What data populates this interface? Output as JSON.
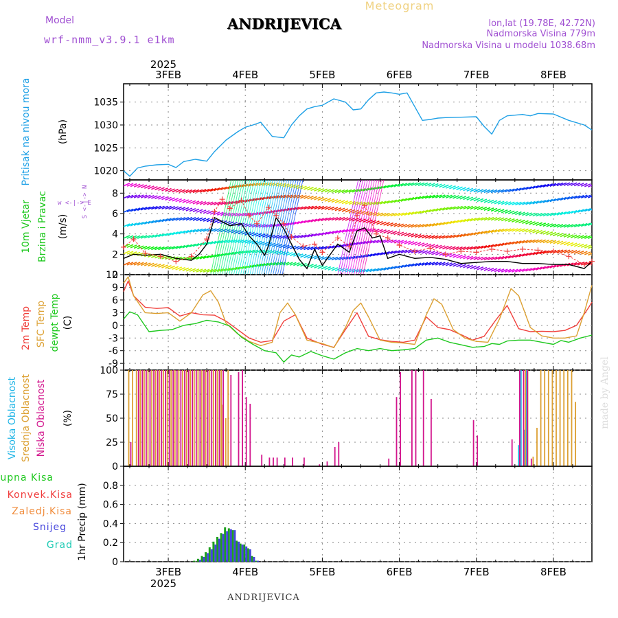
{
  "header": {
    "model_label": "Model",
    "model_name": "wrf-nmm_v3.9.1 e1km",
    "station": "ANDRIJEVICA",
    "product": "Meteogram",
    "coords": "lon,lat (19.78E, 42.72N)",
    "elevation": "Nadmorska Visina 779m",
    "model_elevation": "Nadmorska Visina u modelu 1038.68m"
  },
  "footer": {
    "station": "ANDRIJEVICA",
    "credit": "made by Angel"
  },
  "time_axis": {
    "year": "2025",
    "day_labels": [
      "3FEB",
      "4FEB",
      "5FEB",
      "6FEB",
      "7FEB",
      "8FEB"
    ],
    "day_positions": [
      1,
      2,
      3,
      4,
      5,
      6
    ],
    "x_range": [
      0.42,
      6.5
    ]
  },
  "colors": {
    "pressure": "#1ea0e6",
    "wind_speed": "#000000",
    "temp_2m": "#f0403c",
    "temp_sfc": "#dca032",
    "dewpoint": "#1ec81e",
    "cloud_high": "#1eb4e6",
    "cloud_mid": "#dca032",
    "cloud_low": "#d2148c",
    "precip_total": "#1ea01e",
    "precip_snow": "#4646dc",
    "grid": "#888888"
  },
  "legend_labels": {
    "pressure_name": "Pritisak na nivou mora",
    "pressure_unit": "(hPa)",
    "wind_name_1": "10m Vjetar",
    "wind_name_2": "Brzina i Pravac",
    "wind_unit": "(m/s)",
    "wind_compass": "w <-|-> E",
    "wind_compass_ns": "S <-|-> N",
    "temp_2m": "2m Temp",
    "temp_sfc": "SFC Temp",
    "temp_dew": "dewpt Temp",
    "temp_unit": "(C)",
    "cloud_high": "Visoka Oblacnost",
    "cloud_mid": "Srednja Oblacnost",
    "cloud_low": "Niska Oblacnost",
    "cloud_unit": "(%)",
    "precip_total": "Ukupna Kisa",
    "precip_conv": "Konvek.Kisa",
    "precip_frz": "Zaledj.Kisa",
    "precip_snow": "Snijeg",
    "precip_grad": "Grad",
    "precip_unit": "1hr Precip (mm)"
  },
  "chart_data": [
    {
      "type": "line",
      "name": "pressure",
      "ylim": [
        1018,
        1039
      ],
      "yticks": [
        1020,
        1025,
        1030,
        1035
      ],
      "series": [
        {
          "name": "Pritisak na nivou mora",
          "color": "#1ea0e6",
          "x": [
            0.42,
            0.5,
            0.6,
            0.7,
            0.85,
            1.0,
            1.1,
            1.2,
            1.35,
            1.5,
            1.6,
            1.75,
            1.9,
            2.0,
            2.1,
            2.2,
            2.35,
            2.5,
            2.6,
            2.7,
            2.8,
            2.9,
            3.0,
            3.15,
            3.3,
            3.4,
            3.5,
            3.6,
            3.7,
            3.8,
            3.9,
            4.0,
            4.1,
            4.2,
            4.3,
            4.4,
            4.5,
            4.6,
            4.8,
            5.0,
            5.1,
            5.2,
            5.3,
            5.4,
            5.6,
            5.7,
            5.8,
            6.0,
            6.2,
            6.4,
            6.5
          ],
          "y": [
            1020.0,
            1018.8,
            1020.6,
            1021.0,
            1021.3,
            1021.4,
            1020.7,
            1022.0,
            1022.5,
            1022.1,
            1024.2,
            1026.7,
            1028.5,
            1029.5,
            1030.0,
            1030.6,
            1027.5,
            1027.2,
            1030.0,
            1032.0,
            1033.5,
            1034.0,
            1034.3,
            1035.7,
            1035.0,
            1033.3,
            1033.5,
            1035.5,
            1037.0,
            1037.2,
            1037.0,
            1036.7,
            1037.0,
            1034.0,
            1031.0,
            1031.2,
            1031.5,
            1031.6,
            1031.7,
            1031.8,
            1029.7,
            1028.0,
            1031.0,
            1032.0,
            1032.3,
            1032.0,
            1032.5,
            1032.4,
            1031.0,
            1030.0,
            1028.9
          ]
        }
      ]
    },
    {
      "type": "line",
      "name": "wind",
      "ylim": [
        0,
        9.3
      ],
      "yticks": [
        0,
        2,
        4,
        6,
        8
      ],
      "series": [
        {
          "name": "wind speed",
          "color": "#000000",
          "x": [
            0.42,
            0.55,
            0.7,
            0.9,
            1.1,
            1.3,
            1.4,
            1.5,
            1.6,
            1.8,
            1.95,
            2.05,
            2.15,
            2.25,
            2.3,
            2.4,
            2.5,
            2.6,
            2.7,
            2.8,
            2.9,
            3.0,
            3.2,
            3.35,
            3.45,
            3.55,
            3.65,
            3.75,
            3.85,
            4.0,
            4.2,
            4.4,
            4.6,
            4.8,
            5.0,
            5.2,
            5.4,
            5.6,
            5.8,
            6.0,
            6.2,
            6.4,
            6.5
          ],
          "y": [
            1.6,
            2.0,
            1.9,
            2.0,
            1.6,
            1.4,
            2.0,
            3.0,
            5.6,
            4.8,
            5.0,
            3.8,
            3.0,
            1.9,
            2.8,
            5.6,
            4.5,
            3.0,
            1.5,
            0.6,
            2.5,
            0.9,
            3.0,
            2.2,
            4.3,
            4.6,
            3.6,
            3.8,
            1.6,
            2.0,
            1.6,
            1.7,
            1.5,
            1.1,
            1.2,
            1.3,
            1.3,
            1.1,
            1.1,
            1.0,
            1.0,
            0.6,
            1.3
          ]
        },
        {
          "name": "gust",
          "color": "#f03c3c",
          "x": [
            0.42,
            0.55,
            0.7,
            0.9,
            1.1,
            1.3,
            1.5,
            1.6,
            1.7,
            1.8,
            1.95,
            2.05,
            2.15,
            2.3,
            2.4,
            2.5,
            2.6,
            2.75,
            2.9,
            3.0,
            3.2,
            3.35,
            3.45,
            3.55,
            3.7,
            3.85,
            4.0,
            4.2,
            4.4,
            4.6,
            4.8,
            5.0,
            5.2,
            5.4,
            5.6,
            5.8,
            6.0,
            6.2,
            6.4,
            6.5
          ],
          "y": [
            2.7,
            3.5,
            2.1,
            1.8,
            1.3,
            1.8,
            3.5,
            6.2,
            7.4,
            6.5,
            7.3,
            5.8,
            5.0,
            6.6,
            5.8,
            5.0,
            3.7,
            2.8,
            3.0,
            2.2,
            3.6,
            2.8,
            5.8,
            6.8,
            4.0,
            3.6,
            2.9,
            2.3,
            2.6,
            2.0,
            2.3,
            2.2,
            2.5,
            2.3,
            2.5,
            2.4,
            2.3,
            1.8,
            1.0,
            1.3
          ]
        }
      ]
    },
    {
      "type": "line",
      "name": "temperature",
      "ylim": [
        -10.6,
        12
      ],
      "yticks": [
        -9,
        -6,
        -3,
        0,
        3,
        6,
        9,
        12
      ],
      "series": [
        {
          "name": "2m Temp",
          "color": "#f0403c",
          "x": [
            0.42,
            0.48,
            0.55,
            0.7,
            0.85,
            1.0,
            1.15,
            1.3,
            1.45,
            1.6,
            1.75,
            1.9,
            2.05,
            2.2,
            2.35,
            2.5,
            2.65,
            2.8,
            3.0,
            3.15,
            3.3,
            3.45,
            3.6,
            3.75,
            3.9,
            4.05,
            4.2,
            4.35,
            4.5,
            4.65,
            4.8,
            4.95,
            5.1,
            5.25,
            5.4,
            5.55,
            5.7,
            5.85,
            6.0,
            6.15,
            6.3,
            6.45,
            6.5
          ],
          "y": [
            8.0,
            10.5,
            7.0,
            4.3,
            4.0,
            4.2,
            2.2,
            3.0,
            2.5,
            2.4,
            1.0,
            -1.0,
            -3.0,
            -4.0,
            -3.6,
            1.0,
            2.5,
            -3.0,
            -4.5,
            -5.2,
            -1.0,
            3.0,
            -2.6,
            -3.4,
            -3.8,
            -4.0,
            -3.5,
            2.0,
            -0.5,
            -1.0,
            -2.2,
            -3.5,
            -2.6,
            1.2,
            4.7,
            -0.8,
            -1.5,
            -1.4,
            -1.5,
            -1.2,
            0.0,
            4.0,
            5.5
          ]
        },
        {
          "name": "SFC Temp",
          "color": "#dca032",
          "x": [
            0.42,
            0.48,
            0.55,
            0.7,
            0.85,
            1.0,
            1.15,
            1.3,
            1.45,
            1.55,
            1.65,
            1.75,
            1.9,
            2.05,
            2.2,
            2.35,
            2.45,
            2.55,
            2.65,
            2.8,
            3.0,
            3.15,
            3.3,
            3.4,
            3.5,
            3.6,
            3.75,
            3.9,
            4.05,
            4.2,
            4.35,
            4.45,
            4.55,
            4.7,
            4.85,
            5.0,
            5.15,
            5.3,
            5.45,
            5.55,
            5.7,
            5.85,
            6.0,
            6.15,
            6.3,
            6.4,
            6.5
          ],
          "y": [
            10.0,
            11.5,
            7.0,
            3.0,
            2.8,
            3.0,
            1.0,
            3.0,
            7.2,
            8.2,
            5.5,
            0.5,
            -2.0,
            -3.8,
            -4.8,
            -4.0,
            3.0,
            5.3,
            2.5,
            -3.5,
            -4.3,
            -5.3,
            -0.5,
            3.5,
            5.3,
            2.0,
            -3.5,
            -4.0,
            -4.2,
            -4.5,
            2.5,
            6.3,
            5.0,
            -1.0,
            -3.0,
            -3.8,
            -4.0,
            1.5,
            8.7,
            7.0,
            -0.5,
            -2.5,
            -3.0,
            -3.0,
            -2.5,
            3.0,
            9.5
          ]
        },
        {
          "name": "dewpt Temp",
          "color": "#1ec81e",
          "x": [
            0.42,
            0.5,
            0.6,
            0.75,
            0.9,
            1.05,
            1.2,
            1.35,
            1.5,
            1.65,
            1.8,
            1.95,
            2.1,
            2.25,
            2.4,
            2.5,
            2.6,
            2.7,
            2.85,
            3.0,
            3.15,
            3.3,
            3.45,
            3.6,
            3.75,
            3.9,
            4.05,
            4.2,
            4.35,
            4.5,
            4.65,
            4.8,
            4.95,
            5.1,
            5.2,
            5.3,
            5.4,
            5.55,
            5.7,
            5.85,
            6.0,
            6.1,
            6.2,
            6.35,
            6.5
          ],
          "y": [
            1.5,
            3.2,
            2.5,
            -1.5,
            -1.2,
            -1.0,
            0.0,
            0.4,
            1.2,
            0.8,
            -0.2,
            -2.8,
            -4.5,
            -6.0,
            -6.5,
            -8.7,
            -7.0,
            -7.5,
            -6.2,
            -7.2,
            -8.0,
            -6.5,
            -5.5,
            -6.0,
            -5.5,
            -6.0,
            -5.8,
            -5.5,
            -3.5,
            -3.0,
            -4.0,
            -4.6,
            -5.2,
            -5.0,
            -4.3,
            -4.5,
            -3.7,
            -3.5,
            -3.5,
            -4.0,
            -4.5,
            -3.6,
            -4.0,
            -3.0,
            -2.3
          ]
        }
      ]
    },
    {
      "type": "bar",
      "name": "clouds",
      "ylim": [
        0,
        100
      ],
      "yticks": [
        0,
        25,
        50,
        75,
        100
      ],
      "series": [
        {
          "name": "Visoka Oblacnost",
          "color": "#1eb4e6",
          "x": [
            5.55,
            5.58,
            5.62,
            5.65
          ],
          "y": [
            22,
            100,
            38,
            100
          ]
        },
        {
          "name": "Srednja Oblacnost",
          "color": "#dca032",
          "x": [
            0.5,
            0.55,
            0.6,
            0.65,
            0.7,
            0.75,
            0.8,
            0.85,
            0.9,
            0.95,
            1.0,
            1.05,
            1.1,
            1.15,
            1.2,
            1.25,
            1.3,
            1.35,
            1.4,
            1.45,
            1.5,
            1.55,
            1.6,
            1.65,
            1.7,
            1.72,
            1.76,
            1.79,
            5.65,
            5.68,
            5.75,
            5.8,
            5.85,
            5.9,
            5.95,
            6.0,
            6.05,
            6.1,
            6.15,
            6.2,
            6.25,
            6.3
          ],
          "y": [
            100,
            100,
            100,
            100,
            100,
            100,
            100,
            100,
            100,
            100,
            100,
            100,
            100,
            100,
            100,
            100,
            100,
            100,
            100,
            100,
            100,
            100,
            100,
            100,
            100,
            64,
            50,
            100,
            100,
            100,
            10,
            40,
            100,
            100,
            100,
            100,
            100,
            100,
            100,
            100,
            100,
            67
          ]
        },
        {
          "name": "Niska Oblacnost",
          "color": "#d2148c",
          "x": [
            0.5,
            0.6,
            0.65,
            0.7,
            0.75,
            0.8,
            0.85,
            0.9,
            0.95,
            1.0,
            1.05,
            1.1,
            1.15,
            1.2,
            1.25,
            1.3,
            1.35,
            1.4,
            1.45,
            1.5,
            1.55,
            1.6,
            1.65,
            1.7,
            1.8,
            1.9,
            1.95,
            2.0,
            2.05,
            2.2,
            2.3,
            2.35,
            2.4,
            2.5,
            2.6,
            2.75,
            2.95,
            3.05,
            3.15,
            3.2,
            3.85,
            3.95,
            4.0,
            4.15,
            4.2,
            4.3,
            4.4,
            4.95,
            5.0,
            5.45,
            5.55,
            5.6,
            5.65,
            5.7
          ],
          "y": [
            25,
            100,
            100,
            100,
            100,
            100,
            100,
            100,
            100,
            100,
            100,
            100,
            100,
            100,
            100,
            100,
            100,
            100,
            100,
            100,
            100,
            100,
            100,
            100,
            95,
            98,
            100,
            72,
            65,
            12,
            9,
            9,
            9,
            9,
            9,
            9,
            2,
            5,
            20,
            25,
            8,
            72,
            98,
            100,
            100,
            100,
            70,
            48,
            32,
            28,
            100,
            100,
            100,
            8
          ]
        }
      ]
    },
    {
      "type": "bar",
      "name": "precipitation",
      "ylim": [
        0,
        1.0
      ],
      "yticks": [
        0,
        0.2,
        0.4,
        0.6,
        0.8
      ],
      "series": [
        {
          "name": "Ukupna Kisa",
          "color": "#1ea01e",
          "x": [
            1.35,
            1.4,
            1.45,
            1.5,
            1.55,
            1.6,
            1.65,
            1.7,
            1.75,
            1.8,
            1.85,
            1.9,
            1.95,
            2.0,
            2.05,
            2.1,
            2.15
          ],
          "y": [
            0.01,
            0.03,
            0.06,
            0.1,
            0.15,
            0.21,
            0.26,
            0.3,
            0.36,
            0.35,
            0.33,
            0.22,
            0.19,
            0.18,
            0.14,
            0.06,
            0.01
          ]
        },
        {
          "name": "Snijeg",
          "color": "#4646dc",
          "x": [
            1.4,
            1.45,
            1.5,
            1.55,
            1.6,
            1.65,
            1.7,
            1.75,
            1.8,
            1.85,
            1.9,
            1.95,
            2.0,
            2.05,
            2.1,
            2.15
          ],
          "y": [
            0.02,
            0.05,
            0.09,
            0.13,
            0.18,
            0.24,
            0.29,
            0.32,
            0.34,
            0.33,
            0.21,
            0.18,
            0.16,
            0.13,
            0.05,
            0.01
          ]
        }
      ]
    }
  ]
}
